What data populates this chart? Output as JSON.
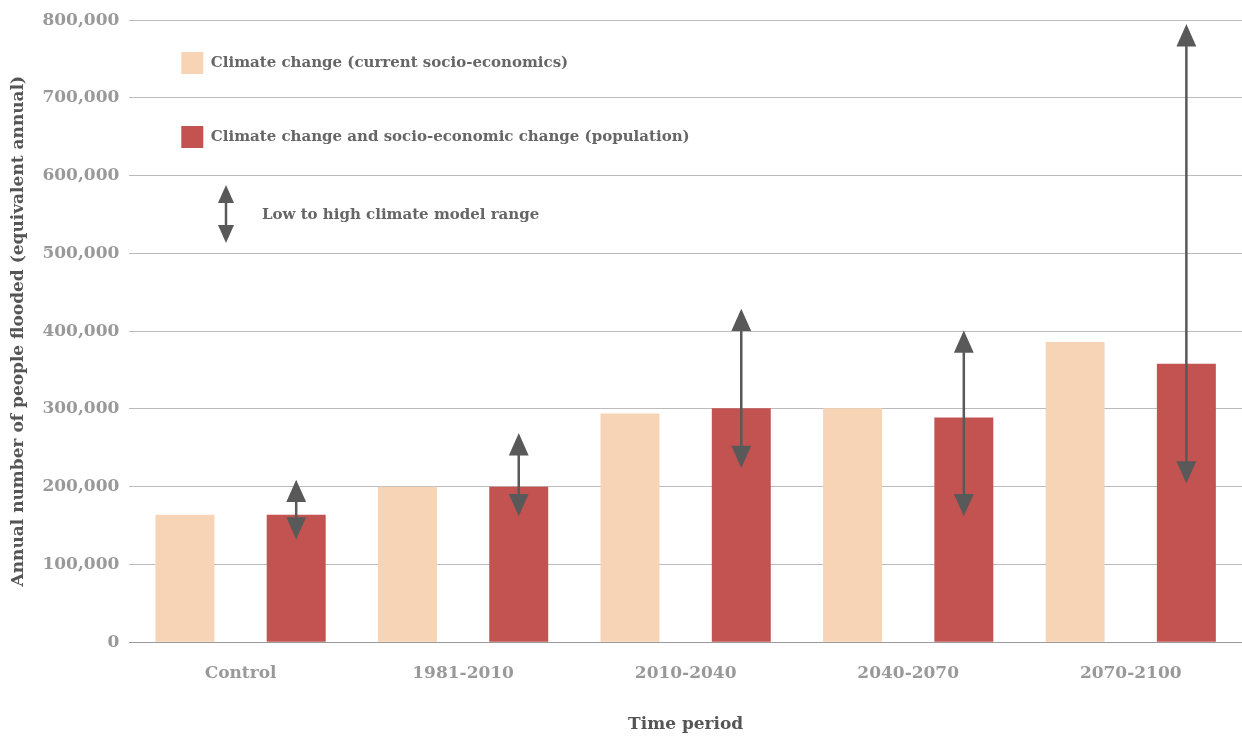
{
  "chart_data": {
    "type": "bar",
    "xlabel": "Time period",
    "ylabel": "Annual number of people flooded (equivalent annual)",
    "categories": [
      "Control",
      "1981-2010",
      "2010-2040",
      "2040-2070",
      "2070-2100"
    ],
    "series": [
      {
        "name": "Climate change (current socio-economics)",
        "color": "#f8d4b6",
        "values": [
          164000,
          200000,
          294000,
          301000,
          386000
        ]
      },
      {
        "name": "Climate change and socio-economic change (population)",
        "color": "#c25351",
        "values": [
          164000,
          200000,
          301000,
          289000,
          358000
        ],
        "errors": [
          [
            136000,
            205000
          ],
          [
            166000,
            265000
          ],
          [
            228000,
            425000
          ],
          [
            166000,
            397000
          ],
          [
            208000,
            791000
          ]
        ]
      }
    ],
    "annotations": [
      "Low to high climate model range"
    ],
    "ylim": [
      0,
      800000
    ],
    "yticks": [
      {
        "value": 0,
        "label": "0"
      },
      {
        "value": 100000,
        "label": "100,000"
      },
      {
        "value": 200000,
        "label": "200,000"
      },
      {
        "value": 300000,
        "label": "300,000"
      },
      {
        "value": 400000,
        "label": "400,000"
      },
      {
        "value": 500000,
        "label": "500,000"
      },
      {
        "value": 600000,
        "label": "600,000"
      },
      {
        "value": 700000,
        "label": "700,000"
      },
      {
        "value": 800000,
        "label": "800,000"
      }
    ],
    "grid": "y",
    "legend": "top left"
  }
}
